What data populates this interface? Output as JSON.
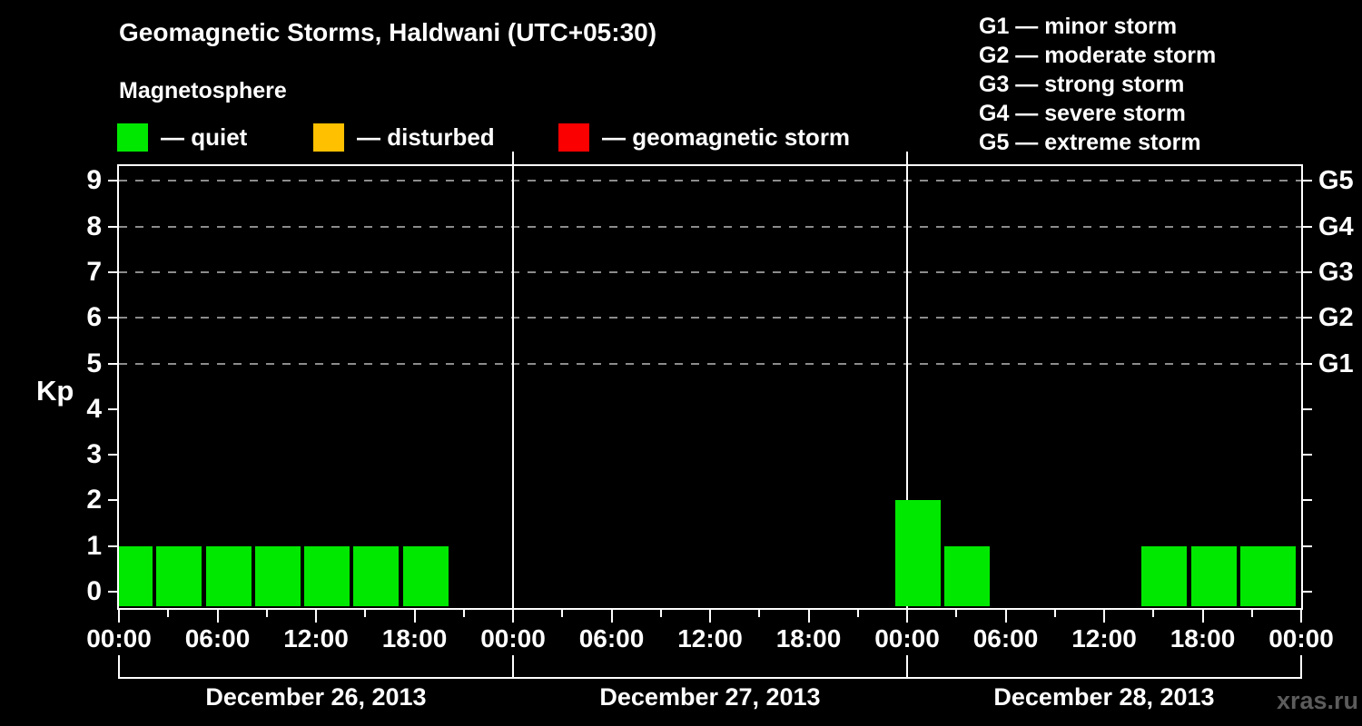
{
  "header": {
    "title": "Geomagnetic Storms, Haldwani (UTC+05:30)",
    "subtitle": "Magnetosphere"
  },
  "legend": {
    "items": [
      {
        "key": "quiet",
        "label": "— quiet"
      },
      {
        "key": "disturbed",
        "label": "— disturbed"
      },
      {
        "key": "storm",
        "label": "— geomagnetic storm"
      }
    ],
    "colors": {
      "quiet": "#00e800",
      "disturbed": "#ffc000",
      "storm": "#fb0000"
    }
  },
  "gscale": {
    "items": [
      "G1 — minor storm",
      "G2 — moderate storm",
      "G3 — strong storm",
      "G4 — severe storm",
      "G5 — extreme storm"
    ]
  },
  "axes": {
    "kp_label": "Kp",
    "kp_ticks": [
      "0",
      "1",
      "2",
      "3",
      "4",
      "5",
      "6",
      "7",
      "8",
      "9"
    ],
    "g_ticks": [
      {
        "label": "G1",
        "kp": 5
      },
      {
        "label": "G2",
        "kp": 6
      },
      {
        "label": "G3",
        "kp": 7
      },
      {
        "label": "G4",
        "kp": 8
      },
      {
        "label": "G5",
        "kp": 9
      }
    ],
    "time_labels": [
      "00:00",
      "06:00",
      "12:00",
      "18:00",
      "00:00",
      "06:00",
      "12:00",
      "18:00",
      "00:00",
      "06:00",
      "12:00",
      "18:00",
      "00:00"
    ],
    "dates": [
      "December 26, 2013",
      "December 27, 2013",
      "December 28, 2013"
    ]
  },
  "watermark": "xras.ru",
  "chart_data": {
    "type": "bar",
    "title": "Geomagnetic Storms, Haldwani (UTC+05:30)",
    "ylabel": "Kp",
    "ylim": [
      0,
      9
    ],
    "interval_hours": 3,
    "grid_dashed_at_kp": [
      5,
      6,
      7,
      8,
      9
    ],
    "g_scale_mapping": {
      "G1": 5,
      "G2": 6,
      "G3": 7,
      "G4": 8,
      "G5": 9
    },
    "days": [
      {
        "date": "December 26, 2013",
        "kp_values": [
          1,
          1,
          1,
          1,
          1,
          1,
          1,
          0
        ]
      },
      {
        "date": "December 27, 2013",
        "kp_values": [
          0,
          0,
          0,
          0,
          0,
          0,
          0,
          0
        ]
      },
      {
        "date": "December 28, 2013",
        "kp_values": [
          2,
          1,
          0,
          0,
          0,
          1,
          1,
          1
        ]
      }
    ],
    "next_interval_partial_kp": 1,
    "color_rule": {
      "quiet": "kp<=3",
      "disturbed": "kp==4",
      "storm": "kp>=5"
    },
    "bar_color_used": "quiet",
    "legend_position": "top-left",
    "grid_on": true
  }
}
